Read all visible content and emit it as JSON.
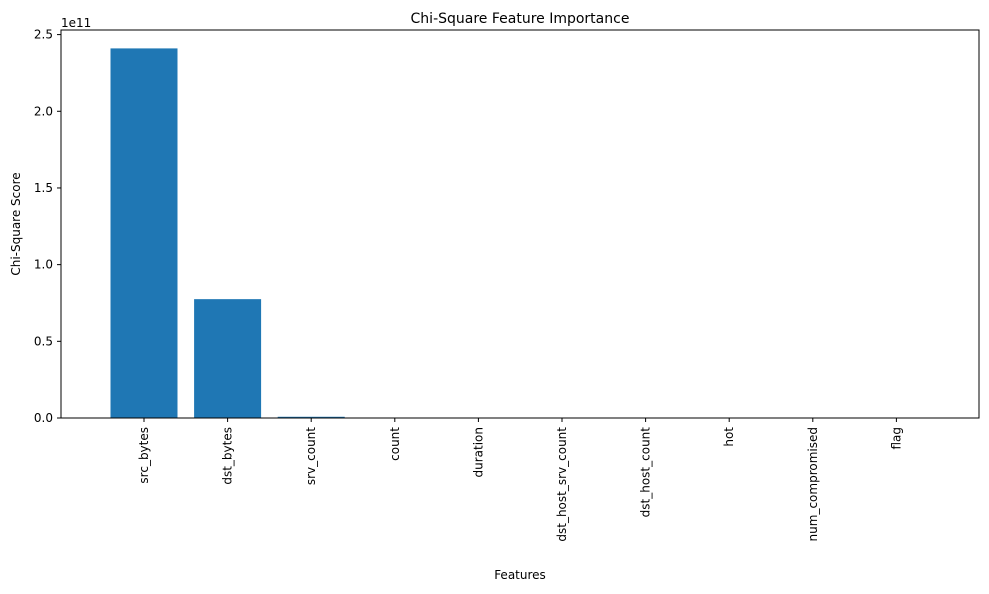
{
  "chart_data": {
    "type": "bar",
    "title": "Chi-Square Feature Importance",
    "xlabel": "Features",
    "ylabel": "Chi-Square Score",
    "y_offset_text": "1e11",
    "categories": [
      "src_bytes",
      "dst_bytes",
      "srv_count",
      "count",
      "duration",
      "dst_host_srv_count",
      "dst_host_count",
      "hot",
      "num_compromised",
      "flag"
    ],
    "values": [
      241000000000,
      77500000000,
      800000000,
      120000000,
      80000000,
      50000000,
      40000000,
      10000000,
      8000000,
      5000000
    ],
    "ylim": [
      0,
      253000000000
    ],
    "yticks": [
      0,
      50000000000,
      100000000000,
      150000000000,
      200000000000,
      250000000000
    ],
    "ytick_labels": [
      "0.0",
      "0.5",
      "1.0",
      "1.5",
      "2.0",
      "2.5"
    ],
    "bar_color": "#1f77b4",
    "grid": false,
    "legend": "none"
  }
}
